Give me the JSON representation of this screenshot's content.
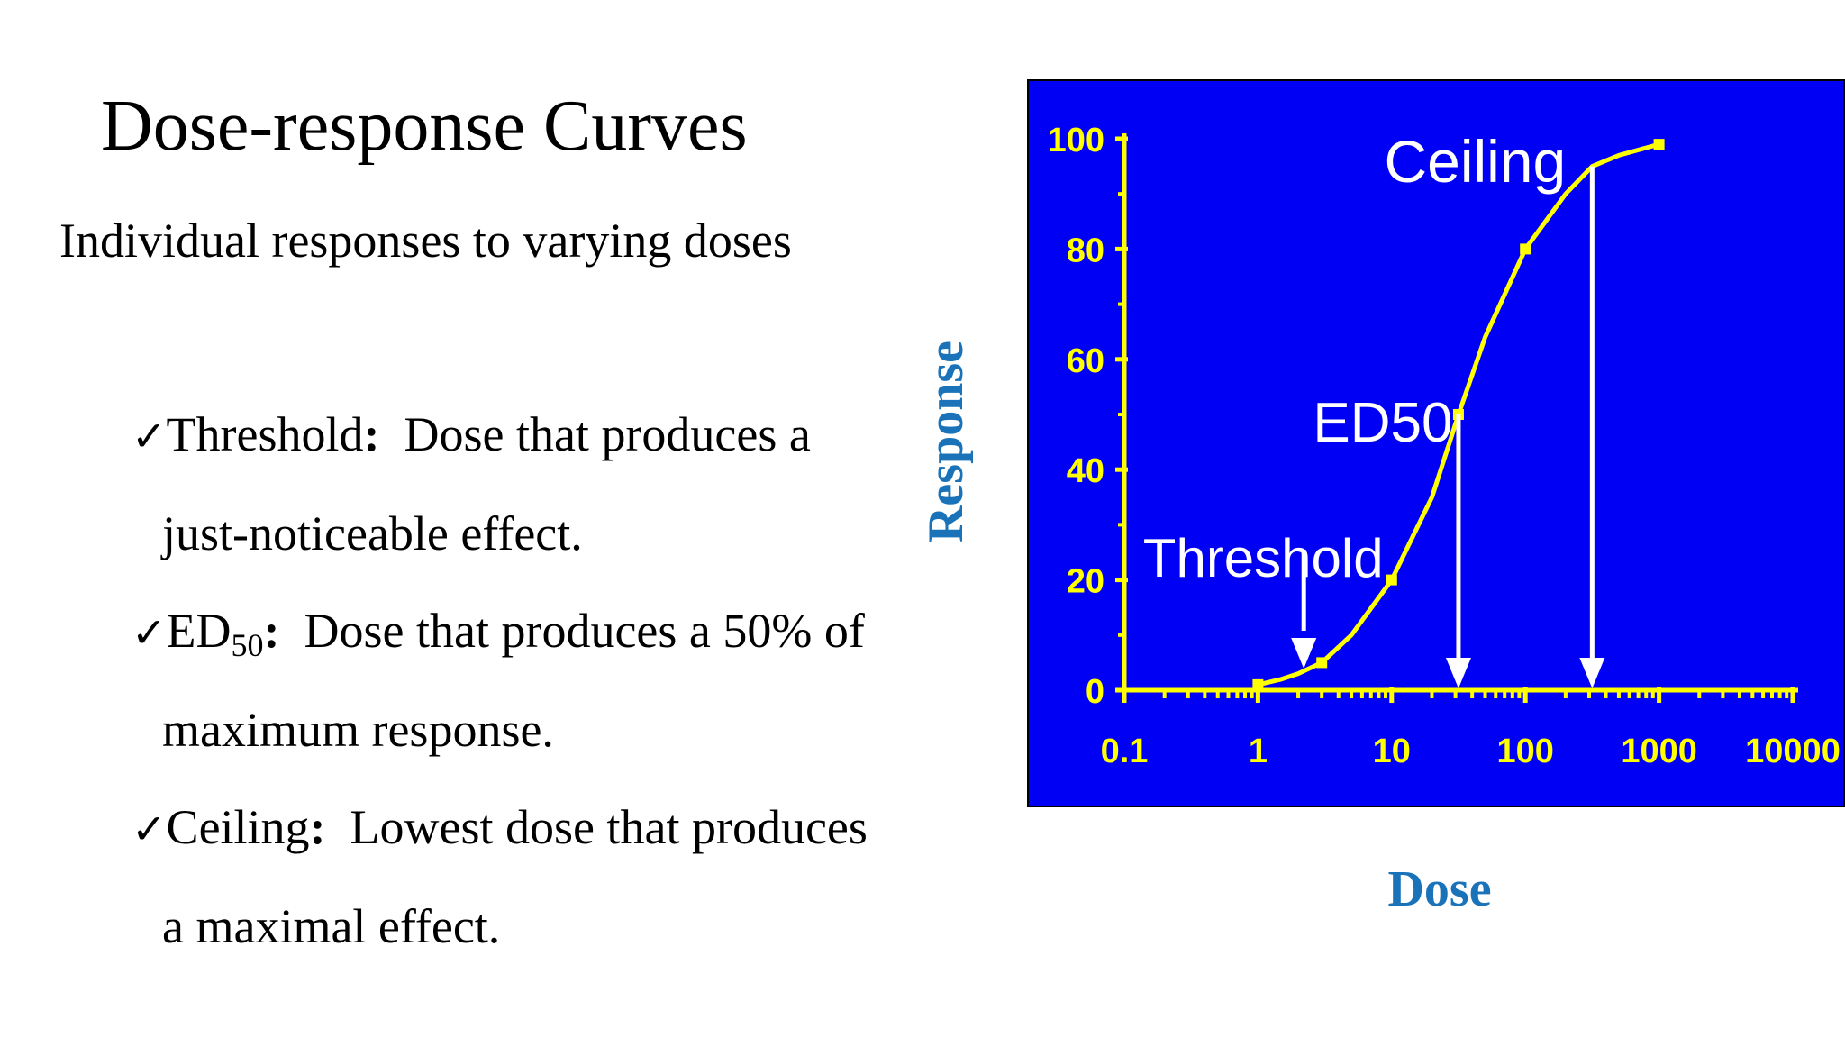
{
  "slide": {
    "title": "Dose-response Curves",
    "subtitle": "Individual responses to varying doses",
    "bullets": [
      {
        "term": "Threshold",
        "line1_rest": "  Dose that produces a",
        "line2": "just-noticeable effect."
      },
      {
        "term": "ED",
        "term_sub": "50",
        "line1_rest": "  Dose that produces a 50% of",
        "line2": "maximum response."
      },
      {
        "term": "Ceiling",
        "line1_rest": "  Lowest dose that produces",
        "line2": "a maximal effect."
      }
    ],
    "check_symbol": "✓",
    "colon": ":"
  },
  "chart_data": {
    "type": "line",
    "xlabel": "Dose",
    "ylabel": "Response",
    "x_scale": "log",
    "xlim": [
      0.1,
      10000
    ],
    "ylim": [
      0,
      100
    ],
    "x_ticks": [
      "0.1",
      "1",
      "10",
      "100",
      "1000",
      "10000"
    ],
    "y_ticks": [
      "0",
      "20",
      "40",
      "60",
      "80",
      "100"
    ],
    "series": [
      {
        "x": [
          1,
          1.5,
          2,
          3,
          5,
          10,
          20,
          31.6,
          50,
          100,
          200,
          316,
          500,
          1000
        ],
        "values": [
          1,
          2,
          3,
          5,
          10,
          20,
          35,
          50,
          64,
          80,
          90,
          95,
          97,
          99
        ],
        "markers_x": [
          1,
          3,
          10,
          31.6,
          100,
          1000
        ],
        "markers_y": [
          1,
          5,
          20,
          50,
          80,
          99
        ]
      }
    ],
    "annotations": [
      {
        "text": "Threshold",
        "x": 2.2,
        "y": 2,
        "arrow": "down"
      },
      {
        "text": "ED50",
        "x": 31.6,
        "y": 50,
        "arrow": "drop-line"
      },
      {
        "text": "Ceiling",
        "x": 316,
        "y": 95,
        "arrow": "drop-line"
      }
    ],
    "colors": {
      "background": "#0000f5",
      "axis": "#ffff00",
      "curve": "#ffff00",
      "annotation": "#ffffff",
      "axis_title": "#1a73b8"
    }
  }
}
